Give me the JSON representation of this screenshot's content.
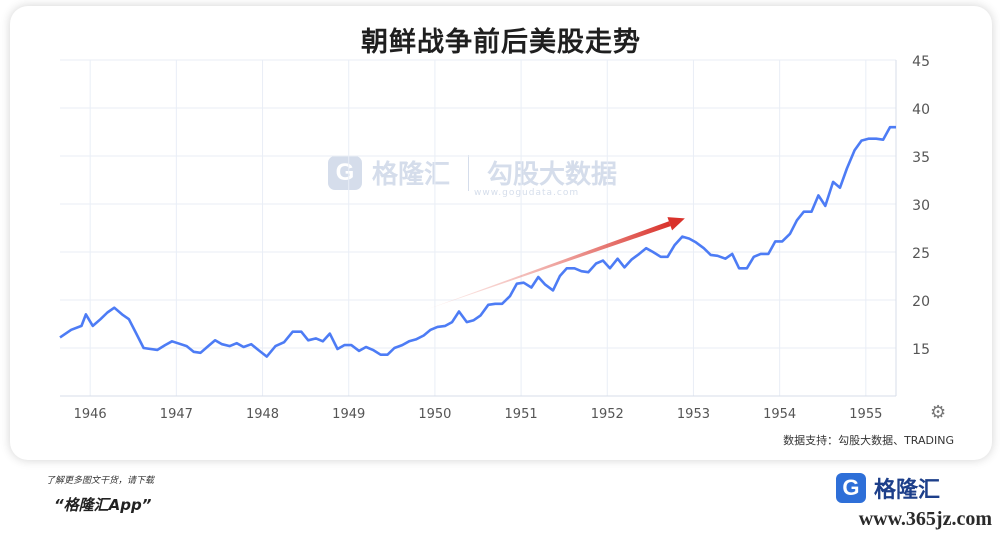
{
  "chart_data": {
    "type": "line",
    "title": "朝鲜战争前后美股走势",
    "xlabel": "",
    "ylabel": "",
    "ylim": [
      10,
      45
    ],
    "xlim": [
      1945.7,
      1955.4
    ],
    "yticks": [
      15,
      20,
      25,
      30,
      35,
      40,
      45
    ],
    "xticks": [
      "1946",
      "1947",
      "1948",
      "1949",
      "1950",
      "1951",
      "1952",
      "1953",
      "1954",
      "1955"
    ],
    "grid": true,
    "y_axis_side": "right",
    "line_color": "#4d7cf5",
    "arrow_color": "#d9322b",
    "arrow": {
      "from": [
        1949.95,
        19.0
      ],
      "to": [
        1952.95,
        28.5
      ]
    },
    "series": [
      {
        "x": [
          1945.7,
          1945.83,
          1945.95,
          1946.0,
          1946.08,
          1946.17,
          1946.25,
          1946.33,
          1946.42,
          1946.5,
          1946.58,
          1946.67,
          1946.83,
          1946.92,
          1947.0,
          1947.17,
          1947.25,
          1947.33,
          1947.42,
          1947.5,
          1947.58,
          1947.67,
          1947.75,
          1947.83,
          1947.92,
          1948.0,
          1948.1,
          1948.2,
          1948.3,
          1948.4,
          1948.5,
          1948.58,
          1948.67,
          1948.75,
          1948.83,
          1948.92,
          1949.0,
          1949.08,
          1949.17,
          1949.25,
          1949.33,
          1949.42,
          1949.5,
          1949.58,
          1949.67,
          1949.75,
          1949.83,
          1949.92,
          1950.0,
          1950.08,
          1950.17,
          1950.25,
          1950.33,
          1950.42,
          1950.5,
          1950.58,
          1950.67,
          1950.75,
          1950.83,
          1950.92,
          1951.0,
          1951.08,
          1951.17,
          1951.25,
          1951.33,
          1951.42,
          1951.5,
          1951.58,
          1951.67,
          1951.75,
          1951.83,
          1951.92,
          1952.0,
          1952.08,
          1952.17,
          1952.25,
          1952.33,
          1952.42,
          1952.5,
          1952.58,
          1952.67,
          1952.75,
          1952.83,
          1952.92,
          1953.0,
          1953.08,
          1953.17,
          1953.25,
          1953.33,
          1953.42,
          1953.5,
          1953.58,
          1953.67,
          1953.75,
          1953.83,
          1953.92,
          1954.0,
          1954.08,
          1954.17,
          1954.25,
          1954.33,
          1954.42,
          1954.5,
          1954.58,
          1954.67,
          1954.75,
          1954.83,
          1954.92,
          1955.0,
          1955.08,
          1955.17,
          1955.25,
          1955.33,
          1955.4
        ],
        "y": [
          16.1,
          16.9,
          17.3,
          18.5,
          17.3,
          18.0,
          18.7,
          19.2,
          18.5,
          18.0,
          16.6,
          15.0,
          14.8,
          15.3,
          15.7,
          15.2,
          14.6,
          14.5,
          15.2,
          15.8,
          15.4,
          15.2,
          15.5,
          15.1,
          15.4,
          14.8,
          14.1,
          15.2,
          15.6,
          16.7,
          16.7,
          15.8,
          16.0,
          15.7,
          16.5,
          14.9,
          15.3,
          15.3,
          14.7,
          15.1,
          14.8,
          14.3,
          14.3,
          15.0,
          15.3,
          15.7,
          15.9,
          16.3,
          16.9,
          17.2,
          17.3,
          17.7,
          18.8,
          17.7,
          17.9,
          18.4,
          19.5,
          19.6,
          19.6,
          20.4,
          21.7,
          21.8,
          21.3,
          22.4,
          21.6,
          21.0,
          22.5,
          23.3,
          23.3,
          23.0,
          22.9,
          23.8,
          24.1,
          23.3,
          24.3,
          23.4,
          24.2,
          24.8,
          25.4,
          25.0,
          24.5,
          24.5,
          25.7,
          26.6,
          26.4,
          26.0,
          25.4,
          24.7,
          24.6,
          24.3,
          24.8,
          23.3,
          23.3,
          24.5,
          24.8,
          24.8,
          26.1,
          26.1,
          26.9,
          28.3,
          29.2,
          29.2,
          30.9,
          29.8,
          32.3,
          31.7,
          33.7,
          35.6,
          36.6,
          36.8,
          36.8,
          36.7,
          38.0,
          38.0
        ]
      }
    ]
  },
  "watermark": {
    "logo_letter": "G",
    "brand": "格隆汇",
    "partner": "勾股大数据",
    "url": "www.gogudata.com"
  },
  "source_text": "数据支持：勾股大数据、TRADING",
  "footer": {
    "text": "了解更多图文干货，请下载",
    "app": "“格隆汇App”",
    "brand_logo": "G",
    "brand_name": "格隆汇",
    "site": "www.365jz.com"
  },
  "icons": {
    "settings": "gear-icon"
  }
}
